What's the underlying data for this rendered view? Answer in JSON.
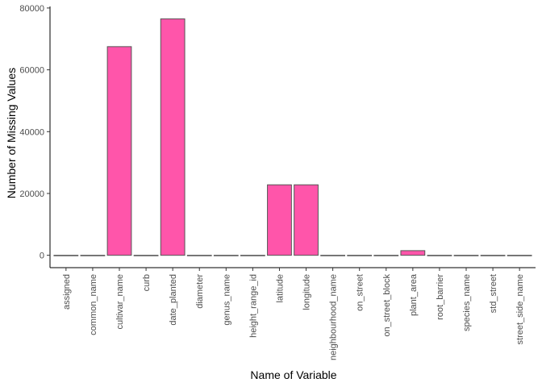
{
  "chart_data": {
    "type": "bar",
    "xlabel": "Name of Variable",
    "ylabel": "Number of Missing Values",
    "ylim": [
      -4000,
      80500
    ],
    "yticks": [
      0,
      20000,
      40000,
      60000,
      80000
    ],
    "grid": false,
    "legend": "none",
    "bar_fill": "#ff55aa",
    "bar_stroke": "#555555",
    "categories": [
      "assigned",
      "common_name",
      "cultivar_name",
      "curb",
      "date_planted",
      "diameter",
      "genus_name",
      "height_range_id",
      "latitude",
      "longitude",
      "neighbourhood_name",
      "on_street",
      "on_street_block",
      "plant_area",
      "root_barrier",
      "species_name",
      "std_street",
      "street_side_name"
    ],
    "values": [
      0,
      0,
      67500,
      0,
      76500,
      0,
      0,
      0,
      22800,
      22800,
      0,
      0,
      0,
      1500,
      0,
      0,
      0,
      0
    ]
  }
}
